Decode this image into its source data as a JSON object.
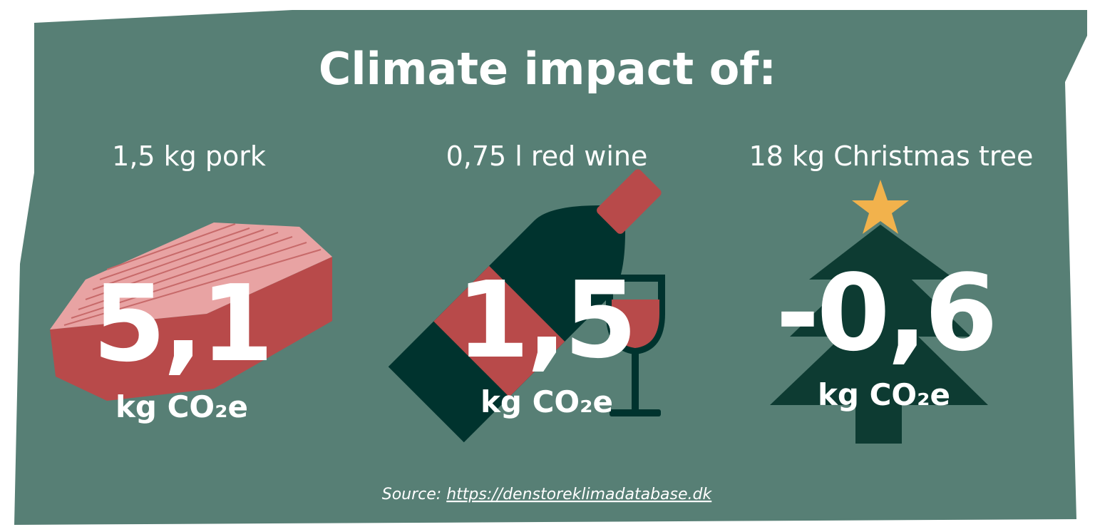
{
  "title": "Climate impact of:",
  "items": [
    {
      "label": "1,5 kg pork",
      "value": "5,1",
      "unit": "kg CO₂e"
    },
    {
      "label": "0,75 l red wine",
      "value": "1,5",
      "unit": "kg CO₂e"
    },
    {
      "label": "18 kg Christmas tree",
      "value": "-0,6",
      "unit": "kg CO₂e"
    }
  ],
  "source": {
    "prefix": "Source:",
    "link": "https://denstoreklimadatabase.dk"
  }
}
